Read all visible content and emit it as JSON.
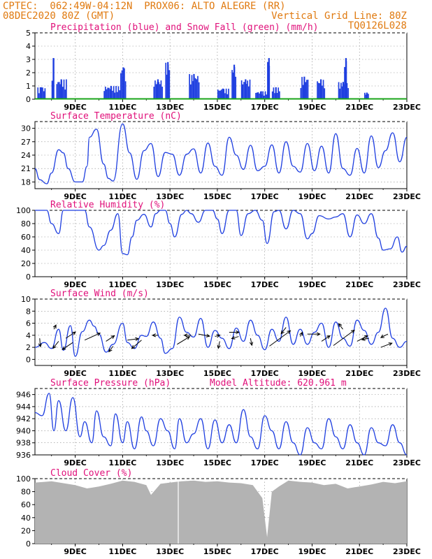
{
  "header": {
    "left1": "CPTEC:  062:49W-04:12N  PROX06: ALTO ALEGRE (RR)",
    "left2": "08DEC2020 80Z (GMT)",
    "right1": "Vertical Grid Line: 80Z",
    "right2": "TQ0126L028"
  },
  "colors": {
    "header": "#e07a10",
    "title": "#e0107a",
    "line": "#1f3fe0",
    "snow": "#1aa51a",
    "cloud": "#b3b3b3",
    "grid": "#888888"
  },
  "x_axis": {
    "date_labels": [
      "9DEC",
      "11DEC",
      "13DEC",
      "15DEC",
      "17DEC",
      "19DEC",
      "21DEC",
      "23DEC"
    ],
    "date_positions_days": [
      1,
      3,
      5,
      7,
      9,
      11,
      13,
      15
    ],
    "range_days": [
      -0.7,
      15
    ]
  },
  "chart_data": [
    {
      "type": "bar",
      "title": "Precipitation (blue) and Snow Fall (green) (mm/h)",
      "ylim": [
        0,
        5
      ],
      "yticks": [
        0,
        1,
        2,
        3,
        4,
        5
      ],
      "series": [
        {
          "name": "Precipitation (blue)",
          "events": [
            {
              "t": -0.6,
              "w": 0.35,
              "v": 0.9
            },
            {
              "t": 0.2,
              "w": 0.45,
              "v": 1.5
            },
            {
              "t": 0.0,
              "w": 0.12,
              "v": 3.1
            },
            {
              "t": 2.2,
              "w": 0.7,
              "v": 1.0
            },
            {
              "t": 2.9,
              "w": 0.25,
              "v": 2.4
            },
            {
              "t": 4.3,
              "w": 0.4,
              "v": 1.5
            },
            {
              "t": 4.8,
              "w": 0.2,
              "v": 2.8
            },
            {
              "t": 5.8,
              "w": 0.45,
              "v": 1.9
            },
            {
              "t": 7.0,
              "w": 0.5,
              "v": 0.8
            },
            {
              "t": 7.6,
              "w": 0.2,
              "v": 2.6
            },
            {
              "t": 8.0,
              "w": 0.4,
              "v": 1.5
            },
            {
              "t": 8.6,
              "w": 0.55,
              "v": 0.6
            },
            {
              "t": 9.1,
              "w": 0.12,
              "v": 3.1
            },
            {
              "t": 9.3,
              "w": 0.35,
              "v": 0.9
            },
            {
              "t": 10.5,
              "w": 0.35,
              "v": 1.7
            },
            {
              "t": 11.2,
              "w": 0.35,
              "v": 1.5
            },
            {
              "t": 12.1,
              "w": 0.45,
              "v": 1.3
            },
            {
              "t": 12.35,
              "w": 0.12,
              "v": 3.1
            },
            {
              "t": 13.2,
              "w": 0.2,
              "v": 0.5
            }
          ]
        },
        {
          "name": "Snow Fall (green)",
          "constant": 0.0
        }
      ]
    },
    {
      "type": "line",
      "title": "Surface Temperature (nC)",
      "ylim": [
        16.5,
        31.5
      ],
      "yticks": [
        18,
        21,
        24,
        27,
        30
      ],
      "series": [
        {
          "name": "Surface Temperature",
          "x": [
            -0.7,
            -0.5,
            -0.2,
            0,
            0.3,
            0.5,
            0.7,
            1,
            1.3,
            1.5,
            1.6,
            1.9,
            2.2,
            2.4,
            2.6,
            3.0,
            3.3,
            3.6,
            3.9,
            4.2,
            4.5,
            4.8,
            5.1,
            5.4,
            5.7,
            6.0,
            6.3,
            6.6,
            6.9,
            7.2,
            7.5,
            7.8,
            8.1,
            8.4,
            8.7,
            9.0,
            9.3,
            9.6,
            9.9,
            10.2,
            10.5,
            10.8,
            11.1,
            11.4,
            11.7,
            12.0,
            12.3,
            12.6,
            12.9,
            13.2,
            13.5,
            13.8,
            14.1,
            14.4,
            14.7,
            15.0
          ],
          "y": [
            21,
            18.5,
            17.6,
            20,
            25.2,
            24.5,
            21,
            18,
            18,
            21.5,
            28,
            29.8,
            22,
            18.8,
            18.2,
            31,
            24.5,
            18.6,
            25,
            26.6,
            19.2,
            24.6,
            24.2,
            19.5,
            24.2,
            25.4,
            20,
            26.7,
            21.5,
            19.5,
            28,
            24,
            20.8,
            26.2,
            20.5,
            21.5,
            26.3,
            20,
            27,
            21.5,
            20.2,
            26.6,
            20.5,
            26,
            20,
            28.8,
            21,
            19.5,
            25.5,
            20,
            28.3,
            21.2,
            25,
            29,
            22.5,
            28
          ]
        }
      ]
    },
    {
      "type": "line",
      "title": "Relative Humidity (%)",
      "ylim": [
        0,
        100
      ],
      "yticks": [
        0,
        20,
        40,
        60,
        80,
        100
      ],
      "series": [
        {
          "name": "Relative Humidity",
          "x": [
            -0.7,
            -0.2,
            0,
            0.3,
            0.5,
            0.8,
            1.0,
            1.4,
            1.6,
            2.0,
            2.2,
            2.5,
            2.8,
            3.0,
            3.2,
            3.4,
            3.6,
            3.9,
            4.2,
            4.4,
            4.6,
            4.8,
            5.0,
            5.2,
            5.5,
            5.7,
            5.9,
            6.2,
            6.5,
            6.8,
            7.0,
            7.2,
            7.5,
            7.8,
            8.0,
            8.3,
            8.6,
            8.9,
            9.1,
            9.4,
            9.6,
            9.9,
            10.2,
            10.5,
            10.8,
            11.0,
            11.3,
            11.7,
            12.0,
            12.3,
            12.6,
            12.9,
            13.2,
            13.5,
            13.8,
            14.0,
            14.3,
            14.6,
            14.8,
            15.0
          ],
          "y": [
            100,
            100,
            80,
            65,
            100,
            100,
            100,
            100,
            75,
            40,
            47,
            70,
            95,
            35,
            33,
            60,
            85,
            94,
            75,
            95,
            100,
            100,
            80,
            60,
            94,
            100,
            95,
            82,
            100,
            100,
            87,
            65,
            100,
            100,
            62,
            95,
            100,
            85,
            50,
            98,
            100,
            72,
            100,
            95,
            57,
            65,
            92,
            87,
            90,
            95,
            60,
            93,
            80,
            95,
            58,
            40,
            42,
            60,
            37,
            46
          ]
        }
      ]
    },
    {
      "type": "line",
      "title": "Surface Wind (m/s)",
      "ylim": [
        -1,
        10
      ],
      "yticks": [
        0,
        2,
        4,
        6,
        8,
        10
      ],
      "series": [
        {
          "name": "Surface Wind",
          "x": [
            -0.7,
            -0.3,
            0,
            0.3,
            0.5,
            0.8,
            1.0,
            1.3,
            1.6,
            1.8,
            2.0,
            2.3,
            2.6,
            3.0,
            3.2,
            3.5,
            3.8,
            4.0,
            4.3,
            4.6,
            4.8,
            5.1,
            5.4,
            5.7,
            6.0,
            6.3,
            6.6,
            6.9,
            7.2,
            7.5,
            7.8,
            8.1,
            8.4,
            8.7,
            9.0,
            9.3,
            9.6,
            9.9,
            10.2,
            10.5,
            10.8,
            11.1,
            11.4,
            11.7,
            12.0,
            12.3,
            12.6,
            12.9,
            13.2,
            13.5,
            13.8,
            14.1,
            14.4,
            14.7,
            15.0
          ],
          "y": [
            2.0,
            2.8,
            1.8,
            5.0,
            1.5,
            5.6,
            0.5,
            4.6,
            6.5,
            5.5,
            4.2,
            1.2,
            2.5,
            6.0,
            2.8,
            1.8,
            4.0,
            3.8,
            6.2,
            3.5,
            1.0,
            1.8,
            7.0,
            4.5,
            3.7,
            6.8,
            2.0,
            4.8,
            3.5,
            1.8,
            5.2,
            3.0,
            6.5,
            4.0,
            1.6,
            5.0,
            3.0,
            7.0,
            2.5,
            5.0,
            2.5,
            4.5,
            6.0,
            2.0,
            6.2,
            3.5,
            2.2,
            6.5,
            4.8,
            2.5,
            4.5,
            8.5,
            3.5,
            2.0,
            3.0
          ]
        }
      ],
      "arrows": [
        {
          "t": -0.5,
          "y": 3.5,
          "dx": 1,
          "dy": 12
        },
        {
          "t": 0.1,
          "y": 5.0,
          "dx": 3,
          "dy": -6
        },
        {
          "t": 0.3,
          "y": 3.0,
          "dx": -8,
          "dy": 10
        },
        {
          "t": 0.6,
          "y": 3.5,
          "dx": 14,
          "dy": -9
        },
        {
          "t": 0.9,
          "y": 2.8,
          "dx": -15,
          "dy": 10
        },
        {
          "t": 1.4,
          "y": 3.2,
          "dx": 22,
          "dy": -10
        },
        {
          "t": 2.3,
          "y": 3.0,
          "dx": 12,
          "dy": -8
        },
        {
          "t": 2.6,
          "y": 2.2,
          "dx": -6,
          "dy": 8
        },
        {
          "t": 3.2,
          "y": 3.2,
          "dx": 16,
          "dy": -2
        },
        {
          "t": 3.8,
          "y": 3.2,
          "dx": -14,
          "dy": 12
        },
        {
          "t": 4.5,
          "y": 4.0,
          "dx": -8,
          "dy": 0
        },
        {
          "t": 5.3,
          "y": 2.5,
          "dx": 18,
          "dy": -11
        },
        {
          "t": 5.9,
          "y": 4.0,
          "dx": -10,
          "dy": 0
        },
        {
          "t": 6.2,
          "y": 4.2,
          "dx": 16,
          "dy": 3
        },
        {
          "t": 6.9,
          "y": 3.8,
          "dx": 7,
          "dy": -2
        },
        {
          "t": 7.1,
          "y": 3.0,
          "dx": -2,
          "dy": 10
        },
        {
          "t": 7.5,
          "y": 4.5,
          "dx": 14,
          "dy": 0
        },
        {
          "t": 7.9,
          "y": 3.8,
          "dx": -10,
          "dy": 3
        },
        {
          "t": 8.4,
          "y": 3.5,
          "dx": 2,
          "dy": 10
        },
        {
          "t": 9.2,
          "y": 2.2,
          "dx": 30,
          "dy": -22
        },
        {
          "t": 9.9,
          "y": 5.3,
          "dx": -7,
          "dy": 9
        },
        {
          "t": 10.5,
          "y": 3.8,
          "dx": 3,
          "dy": -6
        },
        {
          "t": 10.8,
          "y": 4.2,
          "dx": 18,
          "dy": 0
        },
        {
          "t": 11.4,
          "y": 3.0,
          "dx": 12,
          "dy": -8
        },
        {
          "t": 11.9,
          "y": 2.3,
          "dx": 30,
          "dy": -22
        },
        {
          "t": 12.3,
          "y": 5.0,
          "dx": -6,
          "dy": -8
        },
        {
          "t": 12.9,
          "y": 3.0,
          "dx": 15,
          "dy": -8
        },
        {
          "t": 13.4,
          "y": 3.5,
          "dx": -10,
          "dy": 2
        },
        {
          "t": 13.9,
          "y": 2.0,
          "dx": 16,
          "dy": -6
        },
        {
          "t": 14.2,
          "y": 4.2,
          "dx": -10,
          "dy": 5
        }
      ]
    },
    {
      "type": "line",
      "title": "Surface Pressure (hPa)",
      "subtitle": "Model Altitude: 620.961 m",
      "ylim": [
        936,
        947
      ],
      "yticks": [
        936,
        938,
        940,
        942,
        944,
        946
      ],
      "series": [
        {
          "name": "Surface Pressure",
          "x": [
            -0.7,
            -0.4,
            -0.1,
            0.1,
            0.3,
            0.6,
            0.9,
            1.2,
            1.4,
            1.7,
            1.9,
            2.2,
            2.5,
            2.7,
            3.0,
            3.2,
            3.5,
            3.8,
            4.0,
            4.3,
            4.6,
            4.9,
            5.2,
            5.4,
            5.7,
            6.0,
            6.3,
            6.6,
            6.9,
            7.2,
            7.5,
            7.8,
            8.1,
            8.4,
            8.7,
            9.0,
            9.3,
            9.6,
            9.9,
            10.2,
            10.5,
            10.8,
            11.1,
            11.4,
            11.7,
            12.0,
            12.3,
            12.6,
            12.9,
            13.2,
            13.5,
            13.8,
            14.1,
            14.4,
            14.7,
            15.0
          ],
          "y": [
            943,
            942.5,
            946.2,
            940,
            945,
            940,
            945.5,
            939,
            941.5,
            938,
            943.3,
            939,
            937.5,
            942.8,
            938,
            941.5,
            937,
            942.3,
            940,
            937.5,
            942,
            940,
            937,
            942,
            938,
            939.5,
            942,
            937,
            941.8,
            938,
            941,
            938,
            943.5,
            939,
            937,
            942.5,
            940,
            937,
            941.5,
            938,
            935.5,
            940.5,
            938,
            937,
            942,
            939,
            937,
            941,
            938,
            936,
            940.5,
            938,
            937.5,
            941,
            938,
            936
          ]
        }
      ]
    },
    {
      "type": "area",
      "title": "Cloud Cover (%)",
      "ylim": [
        0,
        100
      ],
      "yticks": [
        0,
        20,
        40,
        60,
        80,
        100
      ],
      "series": [
        {
          "name": "Cloud Cover",
          "x": [
            -0.7,
            -0.3,
            0,
            0.5,
            1,
            1.5,
            2,
            2.5,
            3,
            3.5,
            4,
            4.2,
            4.6,
            5,
            5.5,
            6,
            6.5,
            7,
            7.5,
            8,
            8.5,
            8.9,
            9.1,
            9.3,
            9.6,
            10,
            10.5,
            11,
            11.5,
            12,
            12.5,
            13,
            13.5,
            14,
            14.5,
            15
          ],
          "y": [
            94,
            95,
            96,
            93,
            90,
            85,
            88,
            92,
            97,
            95,
            90,
            75,
            92,
            94,
            96,
            97,
            95,
            96,
            94,
            93,
            90,
            70,
            10,
            80,
            88,
            97,
            95,
            94,
            90,
            92,
            85,
            88,
            91,
            95,
            93,
            96
          ]
        }
      ]
    }
  ]
}
